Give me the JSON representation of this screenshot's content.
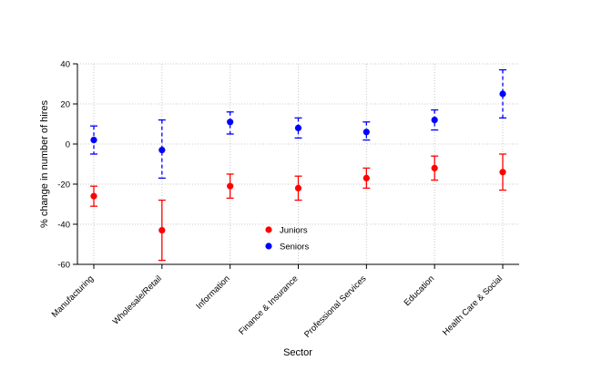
{
  "chart_data": {
    "type": "scatter",
    "title": "",
    "xlabel": "Sector",
    "ylabel": "% change in number of hires",
    "categories": [
      "Manufacturing",
      "Wholesale/Retail",
      "Information",
      "Finance & Insurance",
      "Professional Services",
      "Education",
      "Health Care & Social"
    ],
    "series": [
      {
        "name": "Juniors",
        "color": "#ff0000",
        "line_style": "solid",
        "values": [
          -26,
          -43,
          -21,
          -22,
          -17,
          -12,
          -14
        ],
        "ci_low": [
          -31,
          -58,
          -27,
          -28,
          -22,
          -18,
          -23
        ],
        "ci_high": [
          -21,
          -28,
          -15,
          -16,
          -12,
          -6,
          -5
        ]
      },
      {
        "name": "Seniors",
        "color": "#0000ff",
        "line_style": "dashed",
        "values": [
          2,
          -3,
          11,
          8,
          6,
          12,
          25
        ],
        "ci_low": [
          -5,
          -17,
          5,
          3,
          2,
          7,
          13
        ],
        "ci_high": [
          9,
          12,
          16,
          13,
          11,
          17,
          37
        ]
      }
    ],
    "ylim": [
      -60,
      40
    ],
    "yticks": [
      -60,
      -40,
      -20,
      0,
      20,
      40
    ],
    "grid": "dotted",
    "grid_color": "#c8c8c8",
    "axis_color": "#000000",
    "legend_position": "inside-bottom-center"
  }
}
